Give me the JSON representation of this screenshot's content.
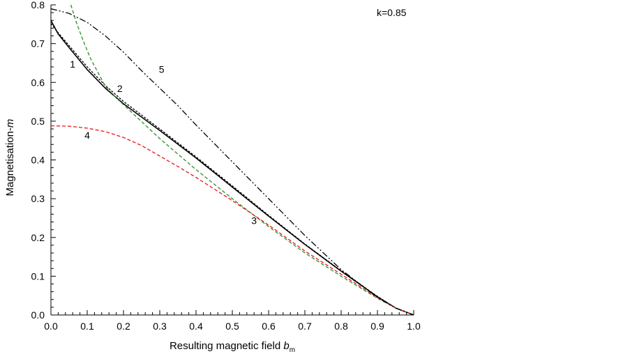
{
  "chart_data": {
    "type": "line",
    "xlabel": "Resulting magnetic field ",
    "xlabel_var": "b",
    "xlabel_sub": "m",
    "ylabel": "Magnetisation-",
    "ylabel_var": "m",
    "xlim": [
      0.0,
      1.0
    ],
    "ylim": [
      0.0,
      0.8
    ],
    "xticks": [
      "0.0",
      "0.1",
      "0.2",
      "0.3",
      "0.4",
      "0.5",
      "0.6",
      "0.7",
      "0.8",
      "0.9",
      "1.0"
    ],
    "yticks": [
      "0.0",
      "0.1",
      "0.2",
      "0.3",
      "0.4",
      "0.5",
      "0.6",
      "0.7",
      "0.8"
    ],
    "grid": false,
    "annotation": "k=0.85",
    "series": [
      {
        "label": "1",
        "color": "#000000",
        "style": "solid",
        "label_pos": [
          0.06,
          0.638
        ],
        "x": [
          0.0,
          0.02,
          0.05,
          0.1,
          0.15,
          0.2,
          0.3,
          0.4,
          0.5,
          0.6,
          0.7,
          0.8,
          0.9,
          0.95,
          1.0
        ],
        "y": [
          0.76,
          0.725,
          0.69,
          0.633,
          0.585,
          0.545,
          0.476,
          0.405,
          0.33,
          0.255,
          0.182,
          0.113,
          0.047,
          0.018,
          0.0
        ]
      },
      {
        "label": "2",
        "color": "#000000",
        "style": "short-dash",
        "label_pos": [
          0.19,
          0.575
        ],
        "x": [
          0.0,
          0.02,
          0.05,
          0.1,
          0.15,
          0.2,
          0.3,
          0.4,
          0.5,
          0.6,
          0.7,
          0.8,
          0.9,
          0.95,
          1.0
        ],
        "y": [
          0.752,
          0.728,
          0.695,
          0.64,
          0.592,
          0.551,
          0.48,
          0.408,
          0.333,
          0.257,
          0.183,
          0.114,
          0.048,
          0.018,
          0.0
        ]
      },
      {
        "label": "3",
        "color": "#2e8b2e",
        "style": "dashed",
        "label_pos": [
          0.56,
          0.235
        ],
        "x": [
          0.055,
          0.07,
          0.09,
          0.11,
          0.13,
          0.15,
          0.18,
          0.22,
          0.3,
          0.4,
          0.5,
          0.6,
          0.7,
          0.8,
          0.9,
          0.95,
          1.0
        ],
        "y": [
          0.8,
          0.755,
          0.705,
          0.66,
          0.625,
          0.59,
          0.56,
          0.525,
          0.455,
          0.375,
          0.3,
          0.228,
          0.16,
          0.1,
          0.043,
          0.018,
          0.0
        ]
      },
      {
        "label": "4",
        "color": "#ee1111",
        "style": "dashed",
        "label_pos": [
          0.1,
          0.455
        ],
        "x": [
          0.0,
          0.05,
          0.1,
          0.15,
          0.2,
          0.25,
          0.3,
          0.35,
          0.4,
          0.5,
          0.6,
          0.7,
          0.8,
          0.9,
          0.95,
          1.0
        ],
        "y": [
          0.488,
          0.487,
          0.482,
          0.473,
          0.458,
          0.437,
          0.41,
          0.383,
          0.355,
          0.295,
          0.232,
          0.165,
          0.105,
          0.045,
          0.018,
          0.0
        ]
      },
      {
        "label": "5",
        "color": "#000000",
        "style": "dash-dot-dot",
        "label_pos": [
          0.305,
          0.625
        ],
        "x": [
          0.0,
          0.05,
          0.1,
          0.15,
          0.2,
          0.25,
          0.3,
          0.35,
          0.4,
          0.5,
          0.6,
          0.7,
          0.8,
          0.9,
          0.95,
          1.0
        ],
        "y": [
          0.79,
          0.778,
          0.755,
          0.72,
          0.678,
          0.63,
          0.585,
          0.54,
          0.49,
          0.395,
          0.3,
          0.205,
          0.117,
          0.045,
          0.018,
          0.0
        ]
      }
    ]
  }
}
